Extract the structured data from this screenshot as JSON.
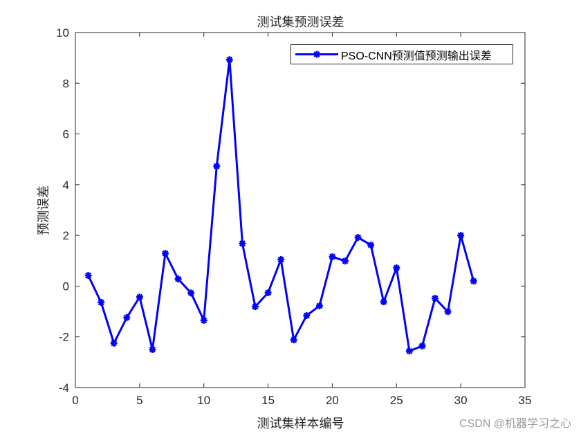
{
  "figure": {
    "title": "测试集预测误差",
    "xlabel": "测试集样本编号",
    "ylabel": "预测误差",
    "watermark": "CSDN @机器学习之心"
  },
  "legend": {
    "label": "PSO-CNN预测值预测输出误差"
  },
  "colors": {
    "series": "#0000ff",
    "axes": "#262626",
    "background": "#ffffff"
  },
  "chart_data": {
    "type": "line",
    "title": "测试集预测误差",
    "xlabel": "测试集样本编号",
    "ylabel": "预测误差",
    "xlim": [
      0,
      35
    ],
    "ylim": [
      -4,
      10
    ],
    "xticks": [
      0,
      5,
      10,
      15,
      20,
      25,
      30,
      35
    ],
    "yticks": [
      -4,
      -2,
      0,
      2,
      4,
      6,
      8,
      10
    ],
    "grid": false,
    "legend_position": "northeast",
    "x": [
      1,
      2,
      3,
      4,
      5,
      6,
      7,
      8,
      9,
      10,
      11,
      12,
      13,
      14,
      15,
      16,
      17,
      18,
      19,
      20,
      21,
      22,
      23,
      24,
      25,
      26,
      27,
      28,
      29,
      30,
      31
    ],
    "series": [
      {
        "name": "PSO-CNN预测值预测输出误差",
        "marker": "asterisk",
        "color": "#0000ff",
        "values": [
          0.42,
          -0.64,
          -2.25,
          -1.24,
          -0.43,
          -2.5,
          1.29,
          0.28,
          -0.27,
          -1.35,
          4.73,
          8.93,
          1.68,
          -0.81,
          -0.26,
          1.05,
          -2.12,
          -1.16,
          -0.78,
          1.16,
          0.99,
          1.92,
          1.62,
          -0.62,
          0.72,
          -2.56,
          -2.36,
          -0.48,
          -1.01,
          2.0,
          0.2
        ]
      }
    ]
  }
}
